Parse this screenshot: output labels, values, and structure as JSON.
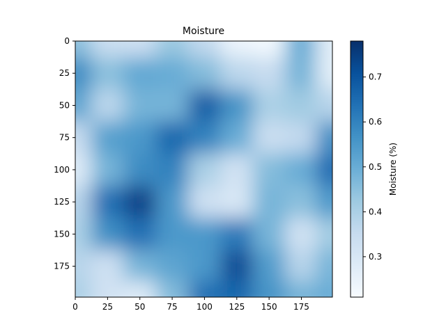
{
  "chart_data": {
    "type": "heatmap",
    "title": "Moisture",
    "colormap": "Blues",
    "x_ticks": [
      0,
      25,
      50,
      75,
      100,
      125,
      150,
      175
    ],
    "y_ticks": [
      0,
      25,
      50,
      75,
      100,
      125,
      150,
      175
    ],
    "xlim": [
      0,
      199
    ],
    "ylim": [
      0,
      199
    ],
    "y_axis_inverted": true,
    "colorbar": {
      "label": "Moisture (%)",
      "range": [
        0.21,
        0.78
      ],
      "ticks": [
        0.3,
        0.4,
        0.5,
        0.6,
        0.7
      ]
    },
    "grid_step": 25,
    "grid_x": [
      0,
      25,
      50,
      75,
      100,
      125,
      150,
      175,
      199
    ],
    "grid_y": [
      0,
      25,
      50,
      75,
      100,
      125,
      150,
      175,
      199
    ],
    "values": [
      [
        0.45,
        0.34,
        0.33,
        0.43,
        0.36,
        0.24,
        0.22,
        0.5,
        0.27
      ],
      [
        0.58,
        0.45,
        0.51,
        0.5,
        0.46,
        0.37,
        0.35,
        0.48,
        0.27
      ],
      [
        0.52,
        0.37,
        0.48,
        0.48,
        0.68,
        0.56,
        0.4,
        0.42,
        0.38
      ],
      [
        0.35,
        0.53,
        0.55,
        0.66,
        0.6,
        0.5,
        0.34,
        0.36,
        0.58
      ],
      [
        0.28,
        0.48,
        0.58,
        0.6,
        0.4,
        0.32,
        0.46,
        0.5,
        0.65
      ],
      [
        0.38,
        0.64,
        0.74,
        0.55,
        0.33,
        0.3,
        0.48,
        0.45,
        0.55
      ],
      [
        0.4,
        0.57,
        0.64,
        0.55,
        0.55,
        0.62,
        0.48,
        0.32,
        0.42
      ],
      [
        0.38,
        0.33,
        0.48,
        0.52,
        0.55,
        0.72,
        0.54,
        0.38,
        0.48
      ],
      [
        0.4,
        0.32,
        0.28,
        0.46,
        0.64,
        0.66,
        0.56,
        0.48,
        0.5
      ]
    ]
  }
}
